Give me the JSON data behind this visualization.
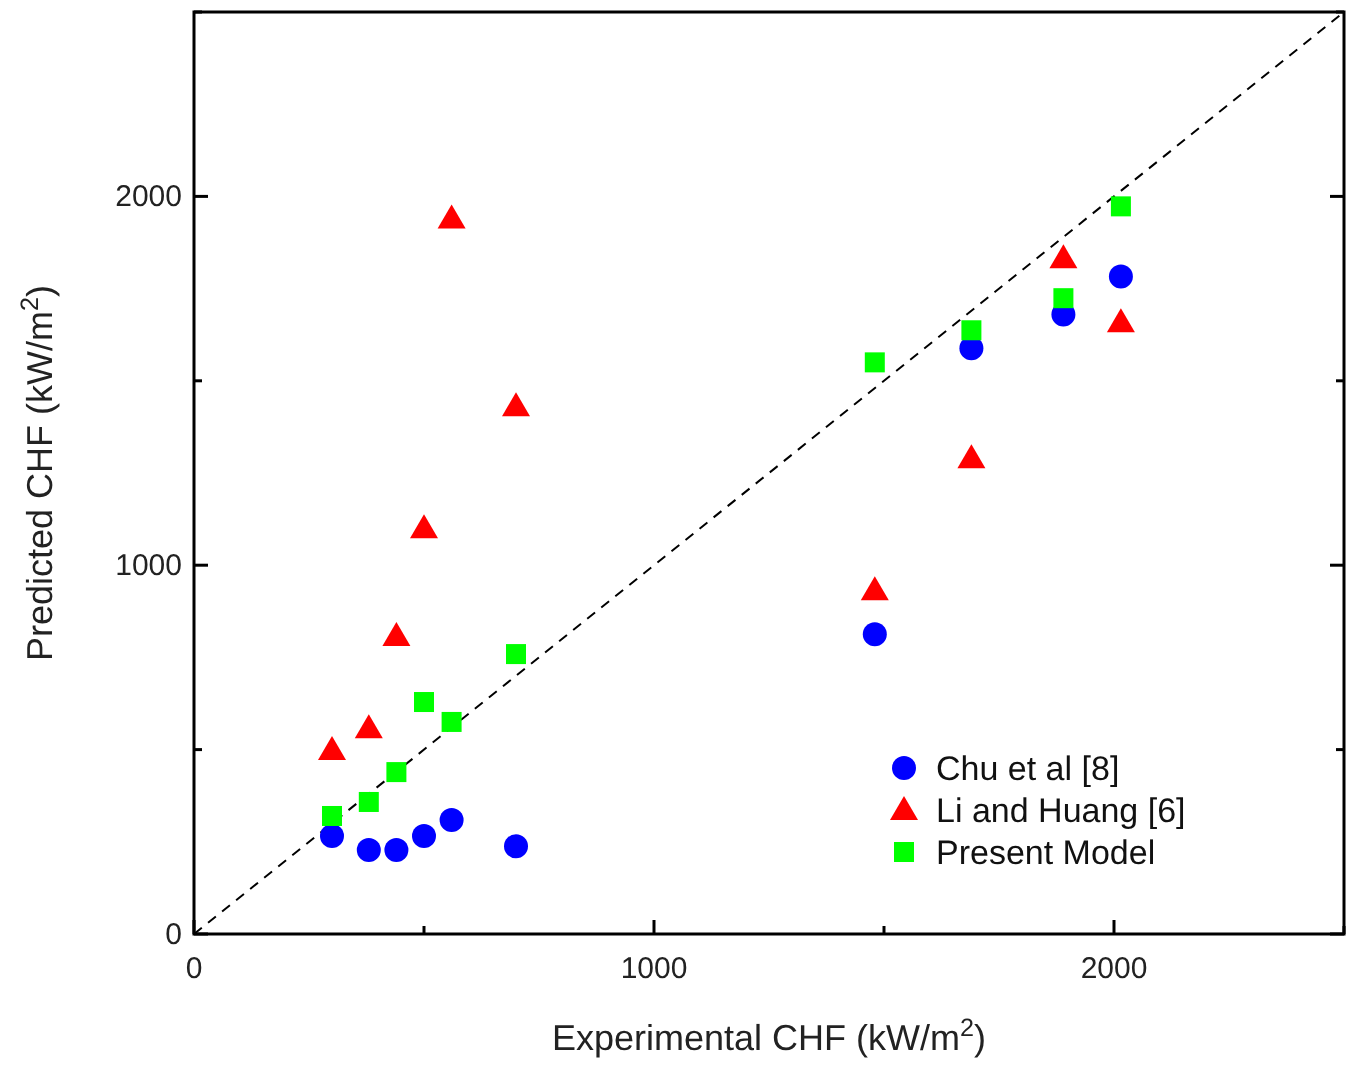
{
  "chart_data": {
    "type": "scatter",
    "xlabel": "Experimental CHF (kW/m$^{2}$)",
    "ylabel": "Predicted CHF (kW/m$^{2}$)",
    "xlim": [
      0,
      2500
    ],
    "ylim": [
      0,
      2500
    ],
    "xticks": [
      0,
      {
        "value": 500,
        "label": null
      },
      1000,
      {
        "value": 1500,
        "label": null
      },
      2000,
      {
        "value": 2500,
        "label": null
      }
    ],
    "yticks": [
      0,
      {
        "value": 500,
        "label": null
      },
      1000,
      {
        "value": 1500,
        "label": null
      },
      2000,
      {
        "value": 2500,
        "label": null
      }
    ],
    "grid": false,
    "legend": "bottom right",
    "series": [
      {
        "type": "line",
        "line_style": "dashed",
        "marker": "none",
        "color": "#000000",
        "x": [
          0,
          2500
        ],
        "values": [
          0,
          2500
        ]
      },
      {
        "name": "Chu et al [8]",
        "color": "#0000ff",
        "marker": "circle",
        "x": [
          300,
          380,
          440,
          500,
          560,
          700,
          1480,
          1690,
          1890,
          2015
        ],
        "values": [
          266,
          228,
          228,
          266,
          309,
          238,
          813,
          1588,
          1680,
          1783
        ]
      },
      {
        "name": "Li and Huang [6]",
        "color": "#ff0000",
        "marker": "triangle",
        "x": [
          300,
          380,
          440,
          500,
          560,
          700,
          1480,
          1690,
          1890,
          2015
        ],
        "values": [
          499,
          558,
          808,
          1100,
          1940,
          1431,
          932,
          1290,
          1832,
          1659
        ]
      },
      {
        "name": "Present Model",
        "color": "#00ff00",
        "marker": "square",
        "x": [
          300,
          380,
          440,
          500,
          560,
          700,
          1480,
          1690,
          1890,
          2015
        ],
        "values": [
          320,
          358,
          439,
          629,
          575,
          759,
          1550,
          1637,
          1724,
          1973
        ]
      }
    ]
  }
}
